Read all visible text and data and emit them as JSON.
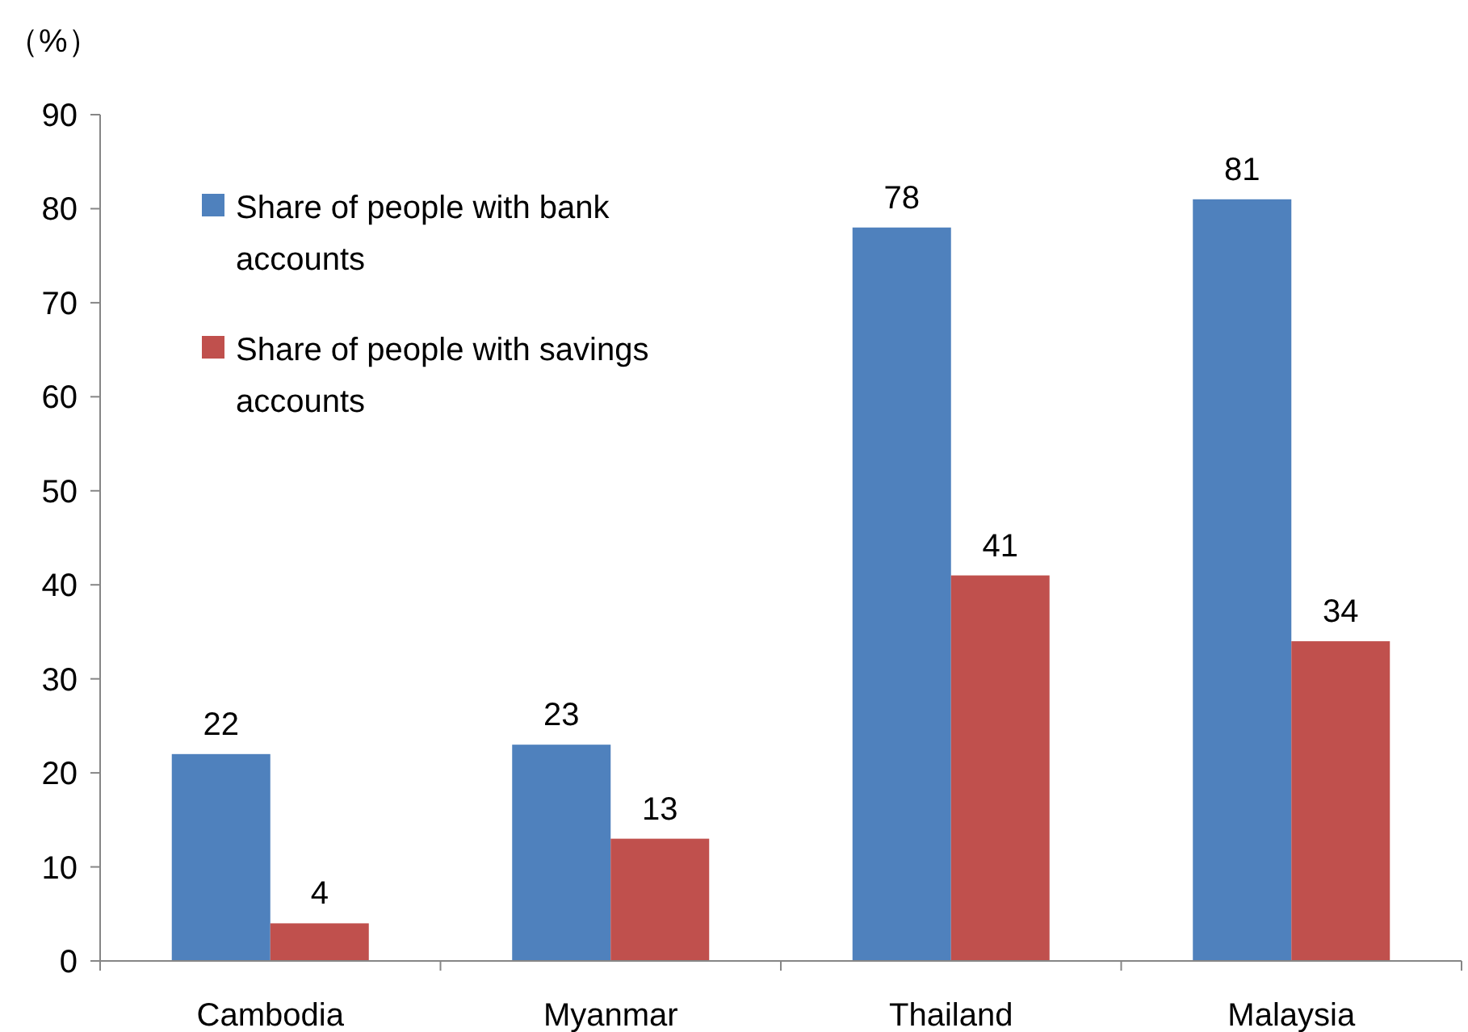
{
  "chart_data": {
    "type": "bar",
    "ylabel": "（%）",
    "categories": [
      "Cambodia",
      "Myanmar",
      "Thailand",
      "Malaysia"
    ],
    "series": [
      {
        "name": "Share of people with bank accounts",
        "color": "#4f81bd",
        "values": [
          22,
          23,
          78,
          81
        ]
      },
      {
        "name": "Share of people with savings accounts",
        "color": "#c0504d",
        "values": [
          4,
          13,
          41,
          34
        ]
      }
    ],
    "ylim": [
      0,
      90
    ],
    "yticks": [
      0,
      10,
      20,
      30,
      40,
      50,
      60,
      70,
      80,
      90
    ],
    "data_labels": true,
    "legend": "top left",
    "grid": false
  }
}
